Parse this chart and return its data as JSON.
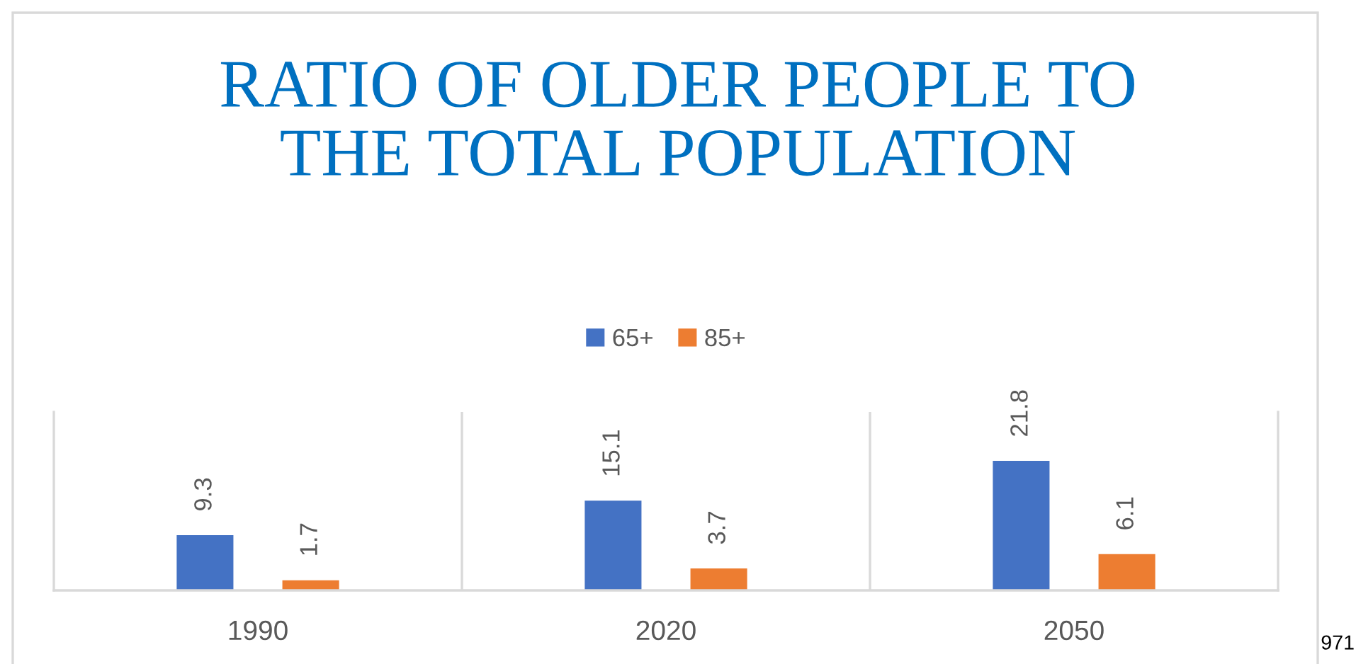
{
  "chart_data": {
    "type": "bar",
    "title": "RATIO OF OLDER PEOPLE TO\nTHE TOTAL POPULATION",
    "categories": [
      "1990",
      "2020",
      "2050"
    ],
    "series": [
      {
        "name": "65+",
        "color": "#4472c4",
        "values": [
          9.3,
          15.1,
          21.8
        ]
      },
      {
        "name": "85+",
        "color": "#ed7d31",
        "values": [
          1.7,
          3.7,
          6.1
        ]
      }
    ],
    "ylim": [
      0,
      30
    ],
    "data_labels": true,
    "legend": "top",
    "grid": "x",
    "annotations": [
      "971"
    ]
  }
}
